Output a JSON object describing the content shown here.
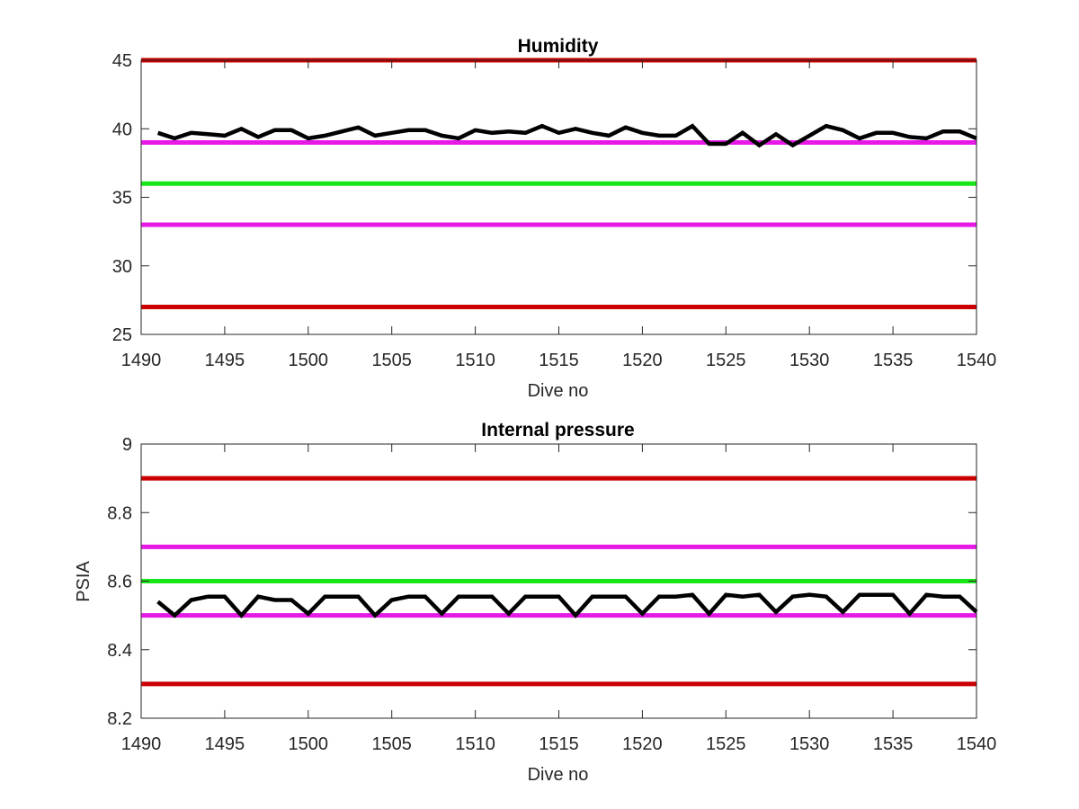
{
  "chart_data": [
    {
      "type": "line",
      "title": "Humidity",
      "xlabel": "Dive no",
      "ylabel": "",
      "xlim": [
        1490,
        1540
      ],
      "ylim": [
        25,
        45
      ],
      "xticks": [
        1490,
        1495,
        1500,
        1505,
        1510,
        1515,
        1520,
        1525,
        1530,
        1535,
        1540
      ],
      "yticks": [
        25,
        30,
        35,
        40,
        45
      ],
      "xtick_labels": [
        "1490",
        "1495",
        "1500",
        "1505",
        "1510",
        "1515",
        "1520",
        "1525",
        "1530",
        "1535",
        "1540"
      ],
      "ytick_labels": [
        "25",
        "30",
        "35",
        "40",
        "45"
      ],
      "grid": false,
      "reference_lines": [
        {
          "y": 45,
          "color": "#cc0000"
        },
        {
          "y": 39,
          "color": "#e619e6"
        },
        {
          "y": 36,
          "color": "#19e619"
        },
        {
          "y": 33,
          "color": "#e619e6"
        },
        {
          "y": 27,
          "color": "#cc0000"
        }
      ],
      "series": [
        {
          "color": "#000000",
          "x": [
            1491,
            1492,
            1493,
            1494,
            1495,
            1496,
            1497,
            1498,
            1499,
            1500,
            1501,
            1502,
            1503,
            1504,
            1505,
            1506,
            1507,
            1508,
            1509,
            1510,
            1511,
            1512,
            1513,
            1514,
            1515,
            1516,
            1517,
            1518,
            1519,
            1520,
            1521,
            1522,
            1523,
            1524,
            1525,
            1526,
            1527,
            1528,
            1529,
            1530,
            1531,
            1532,
            1533,
            1534,
            1535,
            1536,
            1537,
            1538,
            1539,
            1540
          ],
          "y": [
            39.7,
            39.3,
            39.7,
            39.6,
            39.5,
            40.0,
            39.4,
            39.9,
            39.9,
            39.3,
            39.5,
            39.8,
            40.1,
            39.5,
            39.7,
            39.9,
            39.9,
            39.5,
            39.3,
            39.9,
            39.7,
            39.8,
            39.7,
            40.2,
            39.7,
            40.0,
            39.7,
            39.5,
            40.1,
            39.7,
            39.5,
            39.5,
            40.2,
            38.9,
            38.9,
            39.7,
            38.8,
            39.6,
            38.8,
            39.5,
            40.2,
            39.9,
            39.3,
            39.7,
            39.7,
            39.4,
            39.3,
            39.8,
            39.8,
            39.3
          ]
        }
      ]
    },
    {
      "type": "line",
      "title": "Internal pressure",
      "xlabel": "Dive no",
      "ylabel": "PSIA",
      "xlim": [
        1490,
        1540
      ],
      "ylim": [
        8.2,
        9
      ],
      "xticks": [
        1490,
        1495,
        1500,
        1505,
        1510,
        1515,
        1520,
        1525,
        1530,
        1535,
        1540
      ],
      "yticks": [
        8.2,
        8.4,
        8.6,
        8.8,
        9
      ],
      "xtick_labels": [
        "1490",
        "1495",
        "1500",
        "1505",
        "1510",
        "1515",
        "1520",
        "1525",
        "1530",
        "1535",
        "1540"
      ],
      "ytick_labels": [
        "8.2",
        "8.4",
        "8.6",
        "8.8",
        "9"
      ],
      "grid": false,
      "reference_lines": [
        {
          "y": 8.9,
          "color": "#cc0000"
        },
        {
          "y": 8.7,
          "color": "#e619e6"
        },
        {
          "y": 8.6,
          "color": "#19e619"
        },
        {
          "y": 8.5,
          "color": "#e619e6"
        },
        {
          "y": 8.3,
          "color": "#cc0000"
        }
      ],
      "series": [
        {
          "color": "#000000",
          "x": [
            1491,
            1492,
            1493,
            1494,
            1495,
            1496,
            1497,
            1498,
            1499,
            1500,
            1501,
            1502,
            1503,
            1504,
            1505,
            1506,
            1507,
            1508,
            1509,
            1510,
            1511,
            1512,
            1513,
            1514,
            1515,
            1516,
            1517,
            1518,
            1519,
            1520,
            1521,
            1522,
            1523,
            1524,
            1525,
            1526,
            1527,
            1528,
            1529,
            1530,
            1531,
            1532,
            1533,
            1534,
            1535,
            1536,
            1537,
            1538,
            1539,
            1540
          ],
          "y": [
            8.54,
            8.5,
            8.545,
            8.555,
            8.555,
            8.5,
            8.555,
            8.545,
            8.545,
            8.505,
            8.555,
            8.555,
            8.555,
            8.5,
            8.545,
            8.555,
            8.555,
            8.505,
            8.555,
            8.555,
            8.555,
            8.505,
            8.555,
            8.555,
            8.555,
            8.5,
            8.555,
            8.555,
            8.555,
            8.505,
            8.555,
            8.555,
            8.56,
            8.505,
            8.56,
            8.555,
            8.56,
            8.51,
            8.555,
            8.56,
            8.555,
            8.51,
            8.56,
            8.56,
            8.56,
            8.505,
            8.56,
            8.555,
            8.555,
            8.51
          ]
        }
      ]
    }
  ]
}
